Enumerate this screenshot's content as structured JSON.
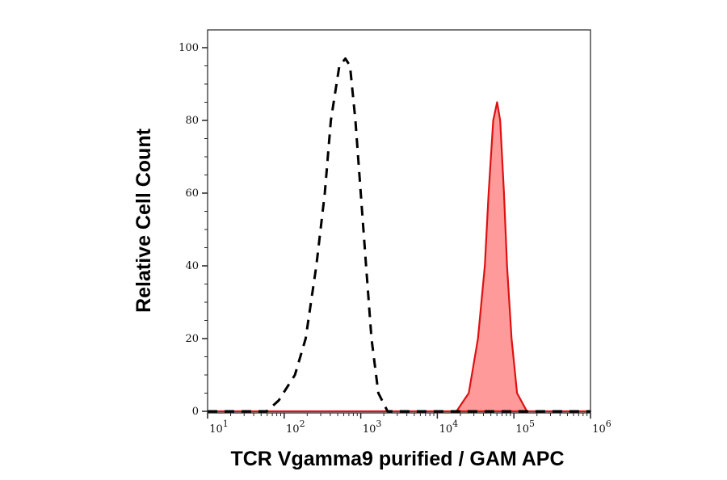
{
  "chart_data": {
    "type": "area",
    "title": "",
    "xlabel": "TCR Vgamma9 purified / GAM APC",
    "ylabel": "Relative Cell Count",
    "x_scale": "log",
    "xlim": [
      10,
      1000000
    ],
    "ylim": [
      0,
      100
    ],
    "x_ticks": [
      {
        "base": "10",
        "exp": "1",
        "value": 10
      },
      {
        "base": "10",
        "exp": "2",
        "value": 100
      },
      {
        "base": "10",
        "exp": "3",
        "value": 1000
      },
      {
        "base": "10",
        "exp": "4",
        "value": 10000
      },
      {
        "base": "10",
        "exp": "5",
        "value": 100000
      },
      {
        "base": "10",
        "exp": "6",
        "value": 1000000
      }
    ],
    "y_ticks": [
      "0",
      "20",
      "40",
      "60",
      "80",
      "100"
    ],
    "grid": false,
    "legend": "none",
    "series": [
      {
        "style": "dashed-line",
        "color": "#000000",
        "x": [
          10,
          59,
          85,
          138,
          191,
          263,
          339,
          407,
          525,
          631,
          724,
          851,
          1000,
          1175,
          1380,
          1700,
          2240,
          1000000
        ],
        "y": [
          0,
          0,
          3,
          10,
          20,
          40,
          60,
          80,
          95,
          97,
          95,
          80,
          60,
          40,
          20,
          5,
          0,
          0
        ]
      },
      {
        "style": "filled-area",
        "color": "#dd1111",
        "fill": "#ff9a9a",
        "x": [
          10,
          17800,
          25700,
          33900,
          41700,
          46800,
          53700,
          60300,
          66100,
          74100,
          81300,
          93300,
          110000,
          148000,
          1000000
        ],
        "y": [
          0,
          0,
          5,
          20,
          40,
          60,
          80,
          85,
          80,
          60,
          40,
          20,
          5,
          0,
          0
        ]
      }
    ]
  }
}
